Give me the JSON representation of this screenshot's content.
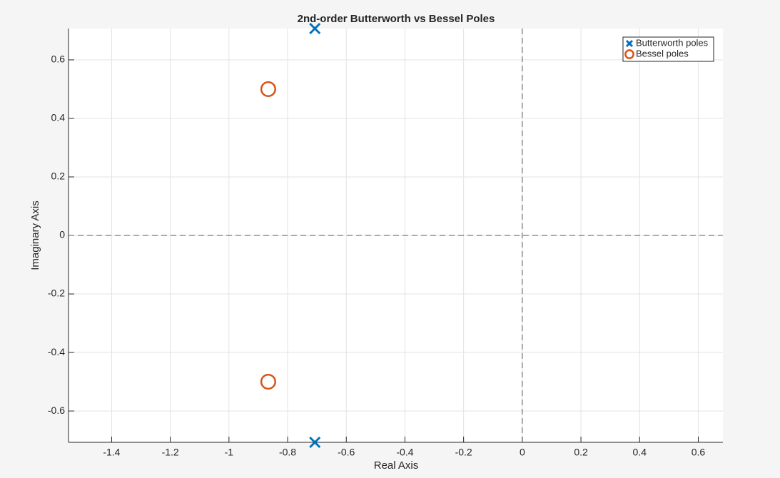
{
  "chart_data": {
    "type": "scatter",
    "title": "2nd-order Butterworth vs Bessel Poles",
    "x_label": "Real Axis",
    "y_label": "Imaginary Axis",
    "series": [
      {
        "name": "Butterworth poles",
        "color": "#0072BD",
        "marker": "x",
        "x": [
          -0.7071,
          -0.7071
        ],
        "values": [
          0.7071,
          -0.7071
        ]
      },
      {
        "name": "Bessel poles",
        "color": "#D95319",
        "marker": "o",
        "x": [
          -0.866,
          -0.866
        ],
        "values": [
          0.5,
          -0.5
        ]
      }
    ],
    "xlim": [
      -1.547,
      0.684
    ],
    "ylim": [
      -0.7071,
      0.7071
    ],
    "xticks": [
      -1.4,
      -1.2,
      -1,
      -0.8,
      -0.6,
      -0.4,
      -0.2,
      0,
      0.2,
      0.4,
      0.6
    ],
    "yticks": [
      -0.6,
      -0.4,
      -0.2,
      0,
      0.2,
      0.4,
      0.6
    ],
    "grid": true,
    "legend": "top-right"
  }
}
